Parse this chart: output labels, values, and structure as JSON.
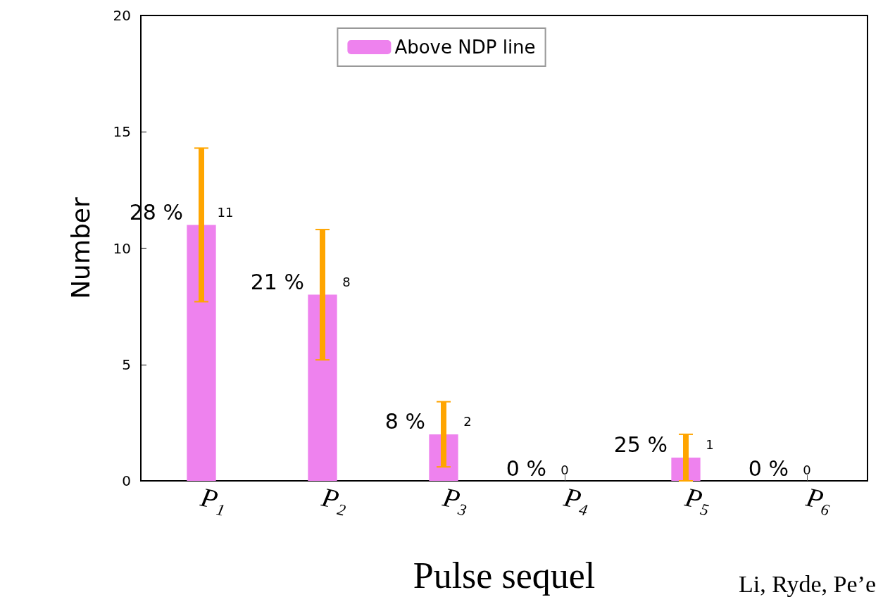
{
  "chart_data": {
    "type": "bar",
    "xlabel": "Pulse sequel",
    "ylabel": "Number",
    "categories": [
      "P₁",
      "P₂",
      "P₃",
      "P₄",
      "P₅",
      "P₆"
    ],
    "series": [
      {
        "name": "Above NDP line",
        "color": "#ee82ee",
        "values": [
          11,
          8,
          2,
          0,
          1,
          0
        ],
        "errors": [
          3.3,
          2.8,
          1.4,
          0,
          1,
          0
        ]
      }
    ],
    "data_labels": true,
    "ylim": [
      0,
      20
    ],
    "yticks": [
      0,
      5,
      10,
      15,
      20
    ],
    "grid": false,
    "legend": "top",
    "annotations": [
      "28 %",
      "21 %",
      "8 %",
      "0 %",
      "25 %",
      "0 %",
      "Li, Ryde, Pe’e"
    ]
  }
}
